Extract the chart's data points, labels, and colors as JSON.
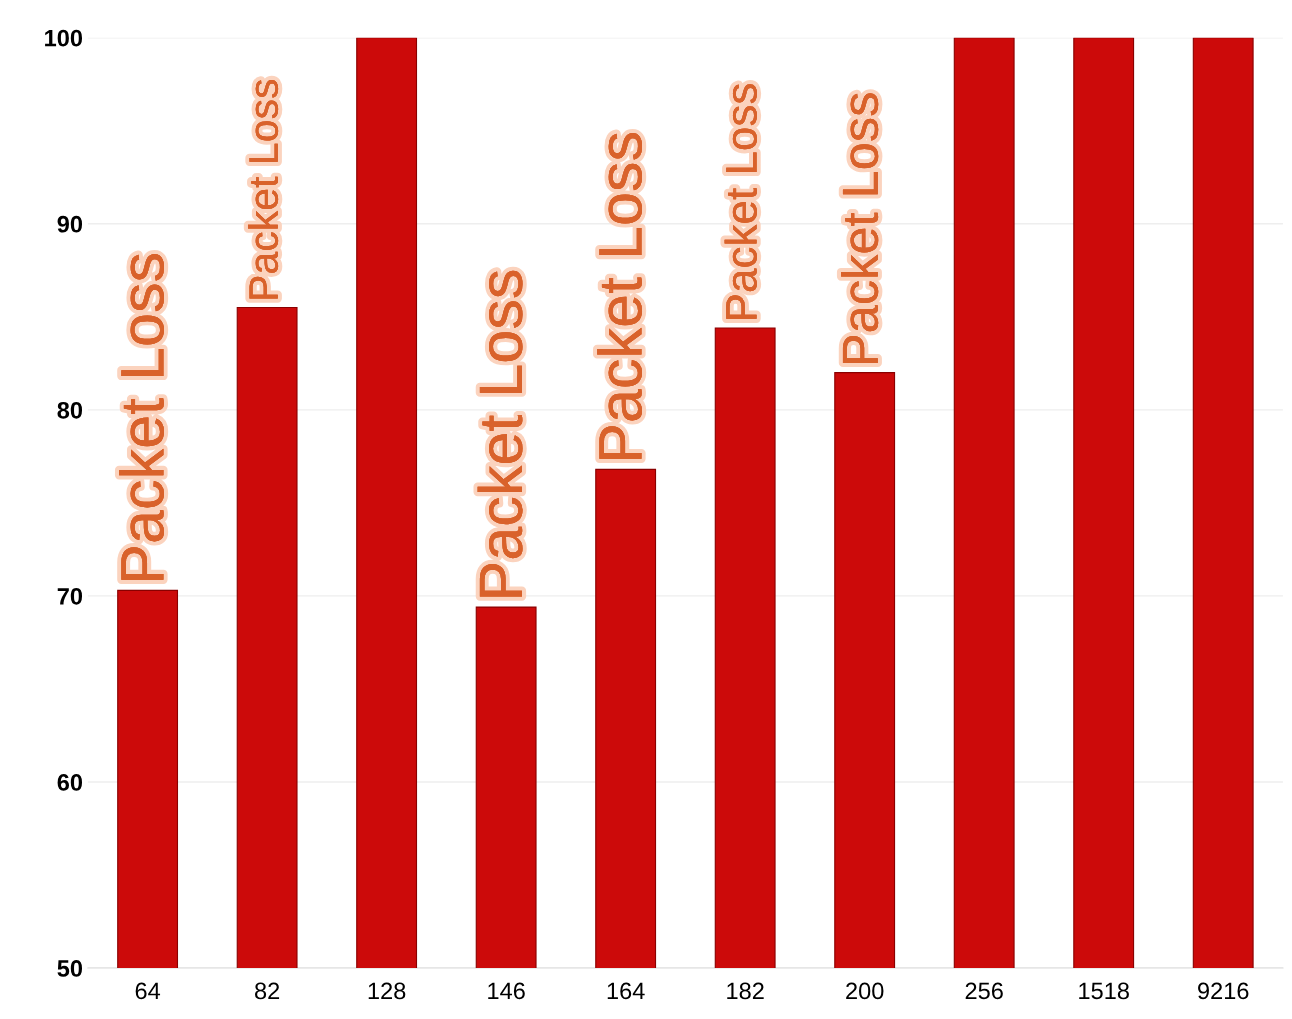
{
  "chart_data": {
    "type": "bar",
    "categories": [
      "64",
      "82",
      "128",
      "146",
      "164",
      "182",
      "200",
      "256",
      "1518",
      "9216"
    ],
    "values": [
      70.3,
      85.5,
      100,
      69.4,
      76.8,
      84.4,
      82.0,
      100,
      100,
      100
    ],
    "color": "#cc0a0a",
    "ylim": [
      50,
      100
    ],
    "yticks": [
      50,
      60,
      70,
      80,
      90,
      100
    ],
    "grid": "y",
    "annotations": [
      {
        "text": "Packet Loss",
        "x": "64",
        "y": 70.3
      },
      {
        "text": "Packet Loss",
        "x": "82",
        "y": 85.5
      },
      {
        "text": "Packet Loss",
        "x": "146",
        "y": 69.4
      },
      {
        "text": "Packet Loss",
        "x": "164",
        "y": 76.8
      },
      {
        "text": "Packet Loss",
        "x": "182",
        "y": 84.4
      },
      {
        "text": "Packet Loss",
        "x": "200",
        "y": 82.0
      }
    ]
  }
}
